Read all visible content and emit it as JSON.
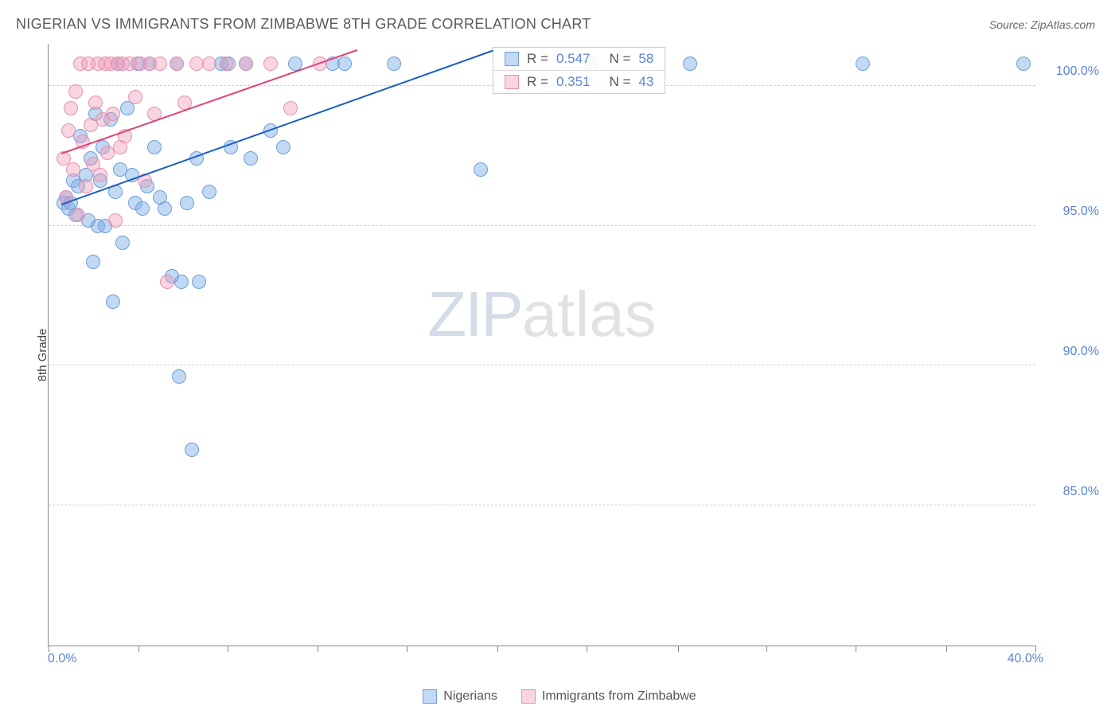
{
  "header": {
    "title": "NIGERIAN VS IMMIGRANTS FROM ZIMBABWE 8TH GRADE CORRELATION CHART",
    "source": "Source: ZipAtlas.com"
  },
  "chart": {
    "type": "scatter",
    "y_axis_label": "8th Grade",
    "xlim": [
      0.0,
      40.0
    ],
    "ylim": [
      80.0,
      101.5
    ],
    "x_tick_positions": [
      0,
      3.64,
      7.27,
      10.9,
      14.5,
      18.2,
      21.8,
      25.5,
      29.1,
      32.7,
      36.4,
      40
    ],
    "y_ticks": [
      85.0,
      90.0,
      95.0,
      100.0
    ],
    "y_tick_labels": [
      "85.0%",
      "90.0%",
      "95.0%",
      "100.0%"
    ],
    "x_min_label": "0.0%",
    "x_max_label": "40.0%",
    "grid_color": "#cccccc",
    "background_color": "#ffffff",
    "point_radius": 9,
    "series": [
      {
        "name": "Nigerians",
        "fill": "rgba(120,170,230,0.45)",
        "stroke": "#6d9edb",
        "line_color": "#1b5fc1",
        "regression": {
          "x1": 0.5,
          "y1": 95.8,
          "x2": 18.0,
          "y2": 101.3
        },
        "R": "0.547",
        "N": "58",
        "points": [
          [
            0.6,
            95.8
          ],
          [
            0.7,
            96.0
          ],
          [
            0.8,
            95.6
          ],
          [
            0.9,
            95.8
          ],
          [
            1.0,
            96.6
          ],
          [
            1.1,
            95.4
          ],
          [
            1.2,
            96.4
          ],
          [
            1.3,
            98.2
          ],
          [
            1.5,
            96.8
          ],
          [
            1.6,
            95.2
          ],
          [
            1.7,
            97.4
          ],
          [
            1.8,
            93.7
          ],
          [
            1.9,
            99.0
          ],
          [
            2.0,
            95.0
          ],
          [
            2.1,
            96.6
          ],
          [
            2.2,
            97.8
          ],
          [
            2.3,
            95.0
          ],
          [
            2.5,
            98.8
          ],
          [
            2.6,
            92.3
          ],
          [
            2.7,
            96.2
          ],
          [
            2.8,
            100.8
          ],
          [
            2.9,
            97.0
          ],
          [
            3.0,
            94.4
          ],
          [
            3.2,
            99.2
          ],
          [
            3.4,
            96.8
          ],
          [
            3.5,
            95.8
          ],
          [
            3.6,
            100.8
          ],
          [
            3.8,
            95.6
          ],
          [
            4.0,
            96.4
          ],
          [
            4.1,
            100.8
          ],
          [
            4.3,
            97.8
          ],
          [
            4.5,
            96.0
          ],
          [
            4.7,
            95.6
          ],
          [
            5.0,
            93.2
          ],
          [
            5.2,
            100.8
          ],
          [
            5.3,
            89.6
          ],
          [
            5.4,
            93.0
          ],
          [
            5.6,
            95.8
          ],
          [
            5.8,
            87.0
          ],
          [
            6.0,
            97.4
          ],
          [
            6.1,
            93.0
          ],
          [
            6.5,
            96.2
          ],
          [
            7.0,
            100.8
          ],
          [
            7.3,
            100.8
          ],
          [
            7.4,
            97.8
          ],
          [
            8.0,
            100.8
          ],
          [
            8.2,
            97.4
          ],
          [
            9.0,
            98.4
          ],
          [
            9.5,
            97.8
          ],
          [
            10.0,
            100.8
          ],
          [
            11.5,
            100.8
          ],
          [
            12.0,
            100.8
          ],
          [
            14.0,
            100.8
          ],
          [
            17.5,
            97.0
          ],
          [
            22.0,
            100.8
          ],
          [
            26.0,
            100.8
          ],
          [
            33.0,
            100.8
          ],
          [
            39.5,
            100.8
          ]
        ]
      },
      {
        "name": "Immigrants from Zimbabwe",
        "fill": "rgba(240,150,180,0.40)",
        "stroke": "#e890b0",
        "line_color": "#e0427a",
        "regression": {
          "x1": 0.5,
          "y1": 97.6,
          "x2": 12.5,
          "y2": 101.3
        },
        "R": "0.351",
        "N": "43",
        "points": [
          [
            0.6,
            97.4
          ],
          [
            0.7,
            96.0
          ],
          [
            0.8,
            98.4
          ],
          [
            0.9,
            99.2
          ],
          [
            1.0,
            97.0
          ],
          [
            1.1,
            99.8
          ],
          [
            1.2,
            95.4
          ],
          [
            1.3,
            100.8
          ],
          [
            1.4,
            98.0
          ],
          [
            1.5,
            96.4
          ],
          [
            1.6,
            100.8
          ],
          [
            1.7,
            98.6
          ],
          [
            1.8,
            97.2
          ],
          [
            1.9,
            99.4
          ],
          [
            2.0,
            100.8
          ],
          [
            2.1,
            96.8
          ],
          [
            2.2,
            98.8
          ],
          [
            2.3,
            100.8
          ],
          [
            2.4,
            97.6
          ],
          [
            2.5,
            100.8
          ],
          [
            2.6,
            99.0
          ],
          [
            2.7,
            95.2
          ],
          [
            2.8,
            100.8
          ],
          [
            2.9,
            97.8
          ],
          [
            3.0,
            100.8
          ],
          [
            3.1,
            98.2
          ],
          [
            3.3,
            100.8
          ],
          [
            3.5,
            99.6
          ],
          [
            3.7,
            100.8
          ],
          [
            3.9,
            96.6
          ],
          [
            4.1,
            100.8
          ],
          [
            4.3,
            99.0
          ],
          [
            4.5,
            100.8
          ],
          [
            4.8,
            93.0
          ],
          [
            5.2,
            100.8
          ],
          [
            5.5,
            99.4
          ],
          [
            6.0,
            100.8
          ],
          [
            6.5,
            100.8
          ],
          [
            7.2,
            100.8
          ],
          [
            8.0,
            100.8
          ],
          [
            9.0,
            100.8
          ],
          [
            9.8,
            99.2
          ],
          [
            11.0,
            100.8
          ]
        ]
      }
    ],
    "stats_box": {
      "left_pct": 45,
      "top_pct": 0.5
    },
    "legend": {
      "items": [
        {
          "label": "Nigerians",
          "fill": "rgba(120,170,230,0.45)",
          "stroke": "#6d9edb"
        },
        {
          "label": "Immigrants from Zimbabwe",
          "fill": "rgba(240,150,180,0.40)",
          "stroke": "#e890b0"
        }
      ]
    },
    "watermark": {
      "part1": "ZIP",
      "part2": "atlas"
    }
  }
}
